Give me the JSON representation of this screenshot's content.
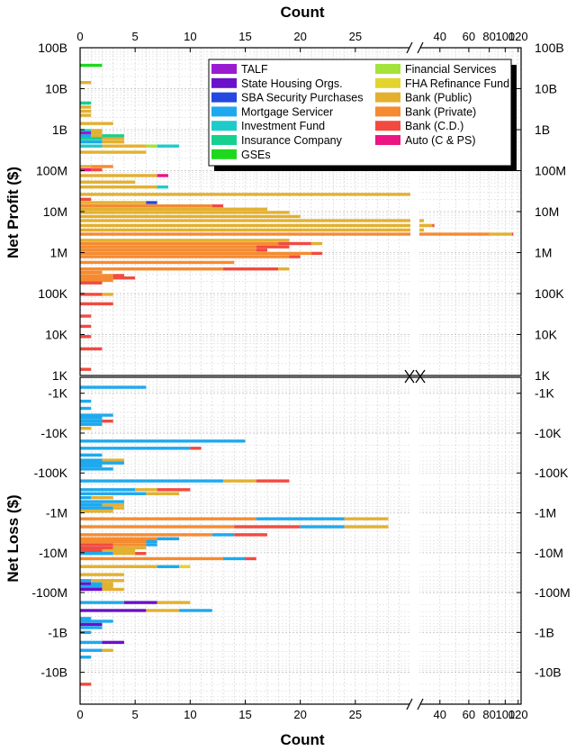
{
  "chart_data": {
    "type": "bar",
    "orientation": "horizontal",
    "stacked": true,
    "title": "",
    "xlabel": "Count",
    "xlabel_top": "Count",
    "x_axis": {
      "linear_range": [
        0,
        30
      ],
      "linear_ticks": [
        0,
        5,
        10,
        15,
        20,
        25
      ],
      "log_range": [
        30,
        125
      ],
      "log_ticks": [
        40,
        60,
        80,
        100,
        120
      ],
      "break_marker": "//"
    },
    "profit_panel": {
      "ylabel": "Net Profit ($)",
      "tick_labels": [
        "100B",
        "10B",
        "1B",
        "100M",
        "10M",
        "1M",
        "100K",
        "10K",
        "1K"
      ],
      "log_min": 3,
      "log_max": 11,
      "grid": true
    },
    "loss_panel": {
      "ylabel": "Net Loss ($)",
      "tick_labels": [
        "-1K",
        "-10K",
        "-100K",
        "-1M",
        "-10M",
        "-100M",
        "-1B",
        "-10B"
      ],
      "log_min": 2.6,
      "log_max": 10.8,
      "grid": true
    },
    "legend": {
      "position": "top-right",
      "entries": [
        {
          "key": "TALF",
          "label": "TALF",
          "color": "#9b1bd2"
        },
        {
          "key": "SHO",
          "label": "State Housing Orgs.",
          "color": "#6a11c9"
        },
        {
          "key": "SBA",
          "label": "SBA Security Purchases",
          "color": "#2448e0"
        },
        {
          "key": "MS",
          "label": "Mortgage Servicer",
          "color": "#1ea9ef"
        },
        {
          "key": "IF",
          "label": "Investment Fund",
          "color": "#1ecbcb"
        },
        {
          "key": "IC",
          "label": "Insurance Company",
          "color": "#16d08f"
        },
        {
          "key": "GSE",
          "label": "GSEs",
          "color": "#1ed81e"
        },
        {
          "key": "FS",
          "label": "Financial Services",
          "color": "#a3e33b"
        },
        {
          "key": "FHA",
          "label": "FHA Refinance Fund",
          "color": "#e3d42d"
        },
        {
          "key": "BPUB",
          "label": "Bank (Public)",
          "color": "#e3b030"
        },
        {
          "key": "BPRIV",
          "label": "Bank (Private)",
          "color": "#f58b30"
        },
        {
          "key": "BCD",
          "label": "Bank (C.D.)",
          "color": "#f24a3f"
        },
        {
          "key": "AUTO",
          "label": "Auto (C & PS)",
          "color": "#ec1585"
        }
      ]
    },
    "profit_bars": [
      {
        "logv": 10.57,
        "segs": [
          [
            "GSE",
            2
          ]
        ]
      },
      {
        "logv": 10.15,
        "segs": [
          [
            "BPUB",
            1
          ]
        ]
      },
      {
        "logv": 9.65,
        "segs": [
          [
            "IC",
            1
          ]
        ]
      },
      {
        "logv": 9.55,
        "segs": [
          [
            "BPUB",
            1
          ]
        ]
      },
      {
        "logv": 9.45,
        "segs": [
          [
            "BPUB",
            1
          ]
        ]
      },
      {
        "logv": 9.35,
        "segs": [
          [
            "BPUB",
            1
          ]
        ]
      },
      {
        "logv": 9.15,
        "segs": [
          [
            "BPUB",
            3
          ]
        ]
      },
      {
        "logv": 8.98,
        "segs": [
          [
            "IF",
            1
          ],
          [
            "BPUB",
            1
          ]
        ]
      },
      {
        "logv": 8.92,
        "segs": [
          [
            "TALF",
            1
          ],
          [
            "BPUB",
            1
          ]
        ]
      },
      {
        "logv": 8.85,
        "segs": [
          [
            "MS",
            1
          ],
          [
            "BPUB",
            1
          ],
          [
            "IC",
            2
          ]
        ]
      },
      {
        "logv": 8.78,
        "segs": [
          [
            "IC",
            2
          ],
          [
            "BPUB",
            2
          ]
        ]
      },
      {
        "logv": 8.7,
        "segs": [
          [
            "MS",
            2
          ],
          [
            "BPUB",
            2
          ]
        ]
      },
      {
        "logv": 8.6,
        "segs": [
          [
            "IF",
            2
          ],
          [
            "BPUB",
            4
          ],
          [
            "FS",
            1
          ],
          [
            "IF",
            2
          ]
        ]
      },
      {
        "logv": 8.45,
        "segs": [
          [
            "BPUB",
            6
          ]
        ]
      },
      {
        "logv": 8.1,
        "segs": [
          [
            "BPUB",
            1
          ],
          [
            "BPRIV",
            2
          ]
        ]
      },
      {
        "logv": 8.02,
        "segs": [
          [
            "AUTO",
            1
          ],
          [
            "BCD",
            1
          ]
        ]
      },
      {
        "logv": 7.88,
        "segs": [
          [
            "BPUB",
            7
          ],
          [
            "AUTO",
            1
          ]
        ]
      },
      {
        "logv": 7.72,
        "segs": [
          [
            "BPUB",
            5
          ]
        ]
      },
      {
        "logv": 7.6,
        "segs": [
          [
            "BPUB",
            7
          ],
          [
            "IF",
            1
          ]
        ]
      },
      {
        "logv": 7.42,
        "segs": [
          [
            "BPUB",
            30
          ]
        ]
      },
      {
        "logv": 7.3,
        "segs": [
          [
            "BCD",
            1
          ]
        ]
      },
      {
        "logv": 7.22,
        "segs": [
          [
            "BPUB",
            6
          ],
          [
            "SBA",
            1
          ]
        ]
      },
      {
        "logv": 7.14,
        "segs": [
          [
            "BPRIV",
            12
          ],
          [
            "BCD",
            1
          ]
        ]
      },
      {
        "logv": 7.06,
        "segs": [
          [
            "BPUB",
            17
          ]
        ]
      },
      {
        "logv": 6.98,
        "segs": [
          [
            "BPUB",
            19
          ]
        ]
      },
      {
        "logv": 6.88,
        "segs": [
          [
            "BPUB",
            20
          ]
        ]
      },
      {
        "logv": 6.78,
        "segs": [
          [
            "BPUB",
            30
          ],
          [
            "BPUB",
            2
          ]
        ]
      },
      {
        "logv": 6.66,
        "segs": [
          [
            "BPUB",
            30
          ],
          [
            "BPUB",
            6
          ],
          [
            "BCD",
            1
          ]
        ]
      },
      {
        "logv": 6.55,
        "segs": [
          [
            "BPUB",
            30
          ],
          [
            "BPUB",
            2
          ]
        ]
      },
      {
        "logv": 6.45,
        "segs": [
          [
            "BPRIV",
            30
          ],
          [
            "BPRIV",
            50
          ],
          [
            "BPUB",
            30
          ],
          [
            "BCD",
            2
          ]
        ]
      },
      {
        "logv": 6.3,
        "segs": [
          [
            "BPUB",
            19
          ]
        ]
      },
      {
        "logv": 6.22,
        "segs": [
          [
            "BPRIV",
            18
          ],
          [
            "BCD",
            3
          ],
          [
            "BPUB",
            1
          ]
        ]
      },
      {
        "logv": 6.14,
        "segs": [
          [
            "BPRIV",
            16
          ],
          [
            "BCD",
            3
          ]
        ]
      },
      {
        "logv": 6.06,
        "segs": [
          [
            "BPRIV",
            16
          ],
          [
            "BCD",
            1
          ]
        ]
      },
      {
        "logv": 5.98,
        "segs": [
          [
            "BPRIV",
            21
          ],
          [
            "BCD",
            1
          ]
        ]
      },
      {
        "logv": 5.9,
        "segs": [
          [
            "BPRIV",
            19
          ],
          [
            "BCD",
            1
          ]
        ]
      },
      {
        "logv": 5.76,
        "segs": [
          [
            "BPRIV",
            14
          ]
        ]
      },
      {
        "logv": 5.6,
        "segs": [
          [
            "BPRIV",
            13
          ],
          [
            "BCD",
            5
          ],
          [
            "BPUB",
            1
          ]
        ]
      },
      {
        "logv": 5.52,
        "segs": [
          [
            "BPRIV",
            2
          ]
        ]
      },
      {
        "logv": 5.44,
        "segs": [
          [
            "BPRIV",
            3
          ],
          [
            "BCD",
            1
          ]
        ]
      },
      {
        "logv": 5.38,
        "segs": [
          [
            "BPRIV",
            3
          ],
          [
            "BCD",
            2
          ]
        ]
      },
      {
        "logv": 5.32,
        "segs": [
          [
            "BPRIV",
            3
          ]
        ]
      },
      {
        "logv": 5.26,
        "segs": [
          [
            "BCD",
            2
          ]
        ]
      },
      {
        "logv": 4.98,
        "segs": [
          [
            "BCD",
            2
          ],
          [
            "BPUB",
            1
          ]
        ]
      },
      {
        "logv": 4.75,
        "segs": [
          [
            "BCD",
            3
          ]
        ]
      },
      {
        "logv": 4.45,
        "segs": [
          [
            "BCD",
            1
          ]
        ]
      },
      {
        "logv": 4.2,
        "segs": [
          [
            "BCD",
            1
          ]
        ]
      },
      {
        "logv": 3.95,
        "segs": [
          [
            "BCD",
            1
          ]
        ]
      },
      {
        "logv": 3.65,
        "segs": [
          [
            "BCD",
            2
          ]
        ]
      },
      {
        "logv": 3.15,
        "segs": [
          [
            "BCD",
            1
          ]
        ]
      }
    ],
    "loss_bars": [
      {
        "logv": 2.85,
        "segs": [
          [
            "MS",
            6
          ]
        ]
      },
      {
        "logv": 3.2,
        "segs": [
          [
            "MS",
            1
          ]
        ]
      },
      {
        "logv": 3.38,
        "segs": [
          [
            "MS",
            1
          ]
        ]
      },
      {
        "logv": 3.55,
        "segs": [
          [
            "MS",
            2
          ],
          [
            "MS",
            1
          ]
        ]
      },
      {
        "logv": 3.62,
        "segs": [
          [
            "MS",
            2
          ]
        ]
      },
      {
        "logv": 3.7,
        "segs": [
          [
            "MS",
            2
          ],
          [
            "BCD",
            1
          ]
        ]
      },
      {
        "logv": 3.78,
        "segs": [
          [
            "MS",
            2
          ]
        ]
      },
      {
        "logv": 3.88,
        "segs": [
          [
            "BPUB",
            1
          ]
        ]
      },
      {
        "logv": 4.2,
        "segs": [
          [
            "MS",
            15
          ]
        ]
      },
      {
        "logv": 4.38,
        "segs": [
          [
            "MS",
            10
          ],
          [
            "BCD",
            1
          ]
        ]
      },
      {
        "logv": 4.55,
        "segs": [
          [
            "MS",
            2
          ]
        ]
      },
      {
        "logv": 4.68,
        "segs": [
          [
            "MS",
            2
          ],
          [
            "BPUB",
            2
          ]
        ]
      },
      {
        "logv": 4.75,
        "segs": [
          [
            "MS",
            4
          ]
        ]
      },
      {
        "logv": 4.82,
        "segs": [
          [
            "MS",
            2
          ]
        ]
      },
      {
        "logv": 4.9,
        "segs": [
          [
            "MS",
            3
          ]
        ]
      },
      {
        "logv": 5.2,
        "segs": [
          [
            "MS",
            13
          ],
          [
            "BPUB",
            3
          ],
          [
            "BCD",
            3
          ]
        ]
      },
      {
        "logv": 5.42,
        "segs": [
          [
            "MS",
            5
          ],
          [
            "BPUB",
            2
          ],
          [
            "BCD",
            3
          ]
        ]
      },
      {
        "logv": 5.52,
        "segs": [
          [
            "MS",
            6
          ],
          [
            "BPUB",
            3
          ]
        ]
      },
      {
        "logv": 5.62,
        "segs": [
          [
            "MS",
            1
          ],
          [
            "BPUB",
            2
          ]
        ]
      },
      {
        "logv": 5.72,
        "segs": [
          [
            "MS",
            4
          ]
        ]
      },
      {
        "logv": 5.8,
        "segs": [
          [
            "MS",
            2
          ],
          [
            "BPUB",
            2
          ]
        ]
      },
      {
        "logv": 5.88,
        "segs": [
          [
            "MS",
            3
          ],
          [
            "BPUB",
            1
          ]
        ]
      },
      {
        "logv": 5.96,
        "segs": [
          [
            "BPUB",
            3
          ]
        ]
      },
      {
        "logv": 6.15,
        "segs": [
          [
            "BPRIV",
            16
          ],
          [
            "MS",
            8
          ],
          [
            "BPUB",
            4
          ]
        ]
      },
      {
        "logv": 6.35,
        "segs": [
          [
            "BPRIV",
            14
          ],
          [
            "BCD",
            6
          ],
          [
            "MS",
            4
          ],
          [
            "BPUB",
            4
          ]
        ]
      },
      {
        "logv": 6.55,
        "segs": [
          [
            "BPRIV",
            12
          ],
          [
            "MS",
            2
          ],
          [
            "BCD",
            3
          ]
        ]
      },
      {
        "logv": 6.65,
        "segs": [
          [
            "BPRIV",
            7
          ],
          [
            "MS",
            2
          ]
        ]
      },
      {
        "logv": 6.72,
        "segs": [
          [
            "BPRIV",
            6
          ],
          [
            "MS",
            1
          ]
        ]
      },
      {
        "logv": 6.8,
        "segs": [
          [
            "BCD",
            3
          ],
          [
            "BPRIV",
            3
          ],
          [
            "MS",
            1
          ]
        ]
      },
      {
        "logv": 6.88,
        "segs": [
          [
            "BCD",
            3
          ],
          [
            "BPUB",
            3
          ]
        ]
      },
      {
        "logv": 6.95,
        "segs": [
          [
            "BCD",
            2
          ],
          [
            "BPUB",
            3
          ]
        ]
      },
      {
        "logv": 7.02,
        "segs": [
          [
            "MS",
            3
          ],
          [
            "BPUB",
            2
          ],
          [
            "BCD",
            1
          ]
        ]
      },
      {
        "logv": 7.15,
        "segs": [
          [
            "BPRIV",
            13
          ],
          [
            "MS",
            2
          ],
          [
            "BCD",
            1
          ]
        ]
      },
      {
        "logv": 7.35,
        "segs": [
          [
            "BPUB",
            7
          ],
          [
            "MS",
            2
          ],
          [
            "FHA",
            1
          ]
        ]
      },
      {
        "logv": 7.55,
        "segs": [
          [
            "BPUB",
            4
          ]
        ]
      },
      {
        "logv": 7.7,
        "segs": [
          [
            "MS",
            1
          ],
          [
            "BPUB",
            3
          ]
        ]
      },
      {
        "logv": 7.78,
        "segs": [
          [
            "SHO",
            1
          ],
          [
            "MS",
            1
          ],
          [
            "BPUB",
            1
          ]
        ]
      },
      {
        "logv": 7.85,
        "segs": [
          [
            "MS",
            2
          ],
          [
            "BPUB",
            1
          ]
        ]
      },
      {
        "logv": 7.92,
        "segs": [
          [
            "SHO",
            2
          ],
          [
            "BPUB",
            2
          ]
        ]
      },
      {
        "logv": 8.25,
        "segs": [
          [
            "MS",
            4
          ],
          [
            "SHO",
            3
          ],
          [
            "BPUB",
            3
          ]
        ]
      },
      {
        "logv": 8.45,
        "segs": [
          [
            "SHO",
            6
          ],
          [
            "BPUB",
            3
          ],
          [
            "MS",
            3
          ]
        ]
      },
      {
        "logv": 8.65,
        "segs": [
          [
            "MS",
            1
          ]
        ]
      },
      {
        "logv": 8.72,
        "segs": [
          [
            "MS",
            2
          ],
          [
            "MS",
            1
          ]
        ]
      },
      {
        "logv": 8.8,
        "segs": [
          [
            "SHO",
            2
          ]
        ]
      },
      {
        "logv": 8.88,
        "segs": [
          [
            "MS",
            2
          ]
        ]
      },
      {
        "logv": 9.0,
        "segs": [
          [
            "MS",
            1
          ]
        ]
      },
      {
        "logv": 9.25,
        "segs": [
          [
            "MS",
            2
          ],
          [
            "SHO",
            2
          ]
        ]
      },
      {
        "logv": 9.45,
        "segs": [
          [
            "MS",
            2
          ],
          [
            "BPUB",
            1
          ]
        ]
      },
      {
        "logv": 9.62,
        "segs": [
          [
            "MS",
            1
          ]
        ]
      },
      {
        "logv": 10.3,
        "segs": [
          [
            "BCD",
            1
          ]
        ]
      }
    ]
  }
}
